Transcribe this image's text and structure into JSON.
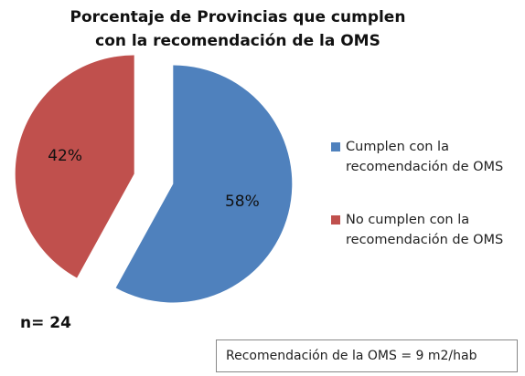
{
  "chart_data": {
    "type": "pie",
    "title": "Porcentaje de Provincias que cumplen con la recomendación de la OMS",
    "series": [
      {
        "name": "Cumplen con la recomendación de OMS",
        "color": "#4f81bd"
      },
      {
        "name": "No cumplen con la recomendación de OMS",
        "color": "#c0504d"
      }
    ],
    "values": [
      58,
      42
    ],
    "value_labels": [
      "58%",
      "42%"
    ],
    "annotations": [
      "n= 24",
      "Recomendación de la OMS = 9 m2/hab"
    ]
  }
}
